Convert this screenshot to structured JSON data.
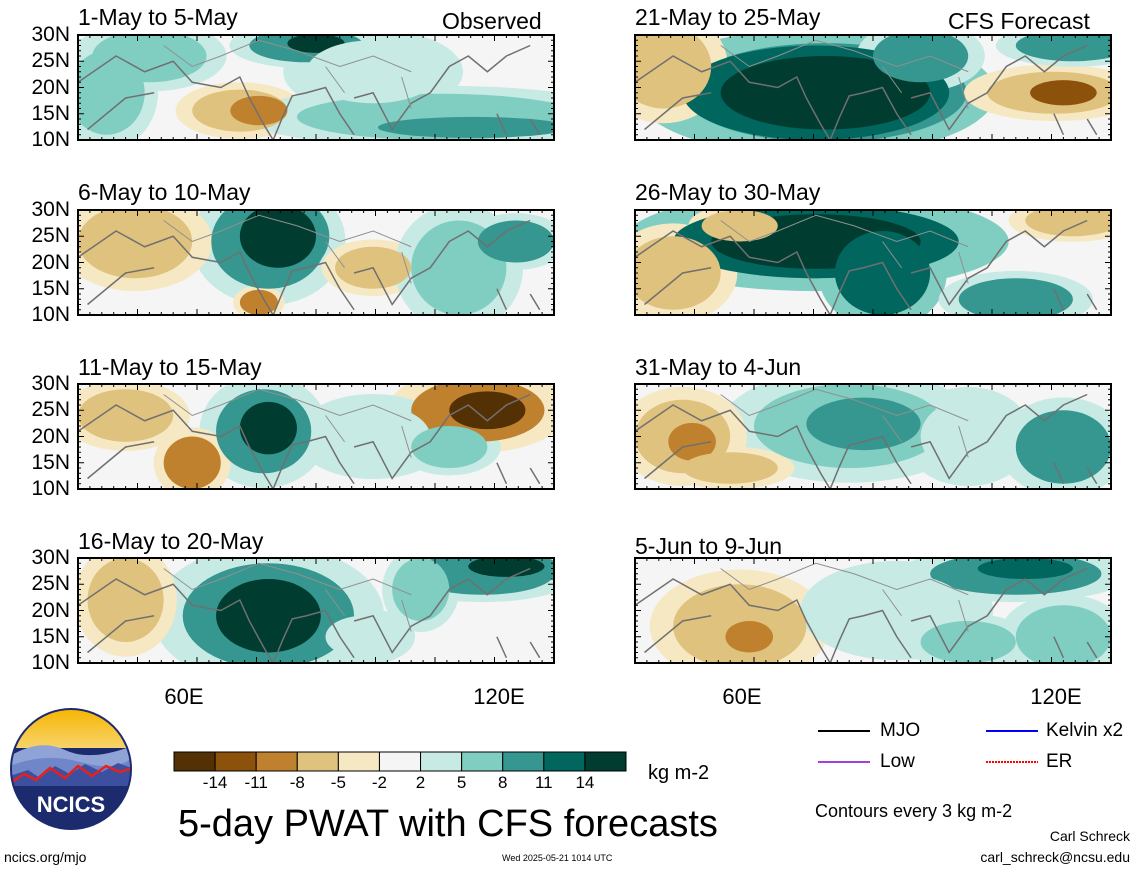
{
  "panels": [
    {
      "title": "1-May to 5-May",
      "tag": "Observed"
    },
    {
      "title": "6-May to 10-May",
      "tag": ""
    },
    {
      "title": "11-May to 15-May",
      "tag": ""
    },
    {
      "title": "16-May to 20-May",
      "tag": ""
    },
    {
      "title": "21-May to 25-May",
      "tag": "CFS Forecast"
    },
    {
      "title": "26-May to 30-May",
      "tag": ""
    },
    {
      "title": "31-May to 4-Jun",
      "tag": ""
    },
    {
      "title": "5-Jun to 9-Jun",
      "tag": ""
    }
  ],
  "lat_labels": [
    "30N",
    "25N",
    "20N",
    "15N",
    "10N"
  ],
  "lon_labels": [
    "60E",
    "120E"
  ],
  "colorbar": {
    "ticks": [
      "-14",
      "-11",
      "-8",
      "-5",
      "-2",
      "2",
      "5",
      "8",
      "11",
      "14"
    ],
    "colors": [
      "#543005",
      "#8c510a",
      "#bf812d",
      "#dfc27d",
      "#f6e8c3",
      "#f5f5f5",
      "#c7eae5",
      "#80cdc1",
      "#35978f",
      "#01665e",
      "#003c30"
    ],
    "units": "kg m-2"
  },
  "main_title": "5-day PWAT with CFS forecasts",
  "legend": {
    "mjo": "MJO",
    "kelvin": "Kelvin x2",
    "low": "Low",
    "er": "ER",
    "colors": {
      "mjo": "#000000",
      "kelvin": "#0000ff",
      "low": "#a040e0",
      "er": "#ff0000"
    }
  },
  "contours_note": "Contours every 3 kg m-2",
  "author": "Carl Schreck",
  "email": "carl_schreck@ncsu.edu",
  "site": "ncics.org/mjo",
  "timestamp": "Wed 2025-05-21 1014 UTC",
  "logo_text": "NCICS"
}
